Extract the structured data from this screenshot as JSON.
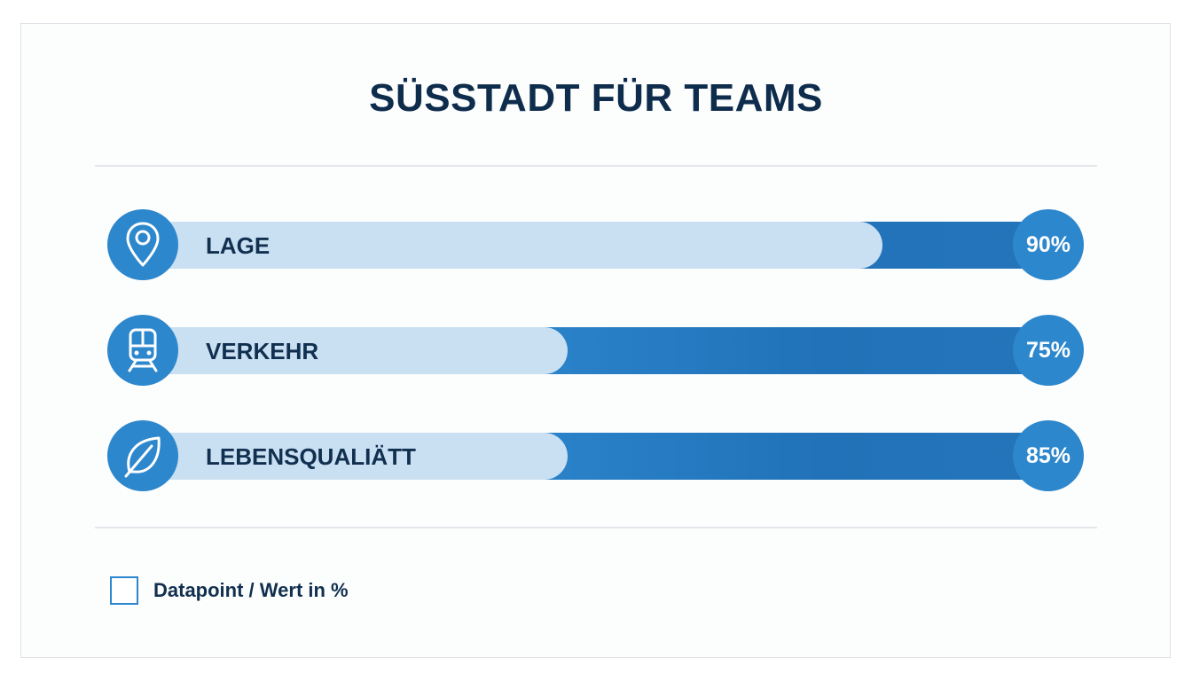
{
  "chart_data": {
    "type": "bar",
    "orientation": "horizontal",
    "title": "SÜSSTADT FÜR TEAMS",
    "categories": [
      "LAGE",
      "VERKEHR",
      "LEBENSQUALIÄTT"
    ],
    "values": [
      90,
      75,
      85
    ],
    "value_labels": [
      "90%",
      "75%",
      "85%"
    ],
    "icons": [
      "map-pin-icon",
      "train-icon",
      "leaf-icon"
    ],
    "legend": "Datapoint / Wert in %",
    "xlim": [
      0,
      100
    ],
    "grid": false,
    "colors": {
      "accent": "#2d87cd",
      "track": "#c9dff2",
      "text": "#112f4f",
      "title": "#0e2c4c"
    }
  }
}
